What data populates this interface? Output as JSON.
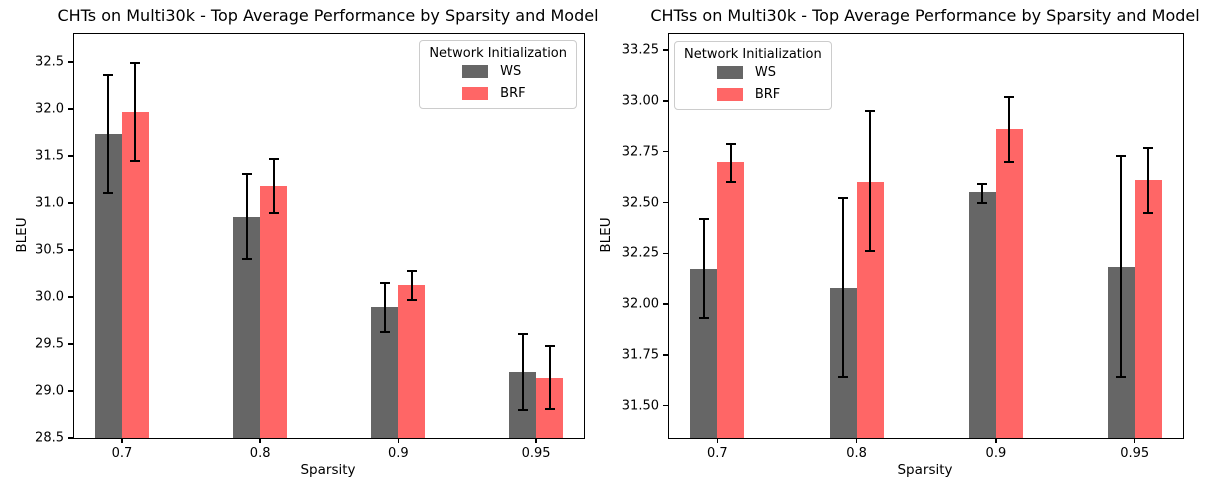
{
  "chart_data": [
    {
      "type": "bar",
      "title": "CHTs on Multi30k - Top Average Performance by Sparsity and Model",
      "xlabel": "Sparsity",
      "ylabel": "BLEU",
      "categories": [
        "0.7",
        "0.8",
        "0.9",
        "0.95"
      ],
      "ylim": [
        28.5,
        32.8
      ],
      "yticks": [
        32.5,
        32.0,
        31.5,
        31.0,
        30.5,
        30.0,
        29.5,
        29.0,
        28.5
      ],
      "ytick_labels": [
        "32.5",
        "32.0",
        "31.5",
        "31.0",
        "30.5",
        "30.0",
        "29.5",
        "29.0",
        "28.5"
      ],
      "grid": false,
      "legend": {
        "title": "Network Initialization",
        "position": "upper right"
      },
      "series": [
        {
          "name": "WS",
          "color": "#666666",
          "values": [
            31.74,
            30.85,
            29.89,
            29.2
          ],
          "err_low": [
            31.11,
            30.4,
            29.63,
            28.8
          ],
          "err_high": [
            32.36,
            31.31,
            30.15,
            29.61
          ]
        },
        {
          "name": "BRF",
          "color": "#FF6666",
          "values": [
            31.97,
            31.18,
            30.13,
            29.14
          ],
          "err_low": [
            31.45,
            30.9,
            29.97,
            28.81
          ],
          "err_high": [
            32.49,
            31.47,
            30.28,
            29.48
          ]
        }
      ]
    },
    {
      "type": "bar",
      "title": "CHTss on Multi30k - Top Average Performance by Sparsity and Model",
      "xlabel": "Sparsity",
      "ylabel": "BLEU",
      "categories": [
        "0.7",
        "0.8",
        "0.9",
        "0.95"
      ],
      "ylim": [
        31.34,
        33.33
      ],
      "yticks": [
        33.25,
        33.0,
        32.75,
        32.5,
        32.25,
        32.0,
        31.75,
        31.5
      ],
      "ytick_labels": [
        "33.25",
        "33.00",
        "32.75",
        "32.50",
        "32.25",
        "32.00",
        "31.75",
        "31.50"
      ],
      "grid": false,
      "legend": {
        "title": "Network Initialization",
        "position": "upper left"
      },
      "series": [
        {
          "name": "WS",
          "color": "#666666",
          "values": [
            32.17,
            32.08,
            32.55,
            32.18
          ],
          "err_low": [
            31.93,
            31.64,
            32.5,
            31.64
          ],
          "err_high": [
            32.42,
            32.52,
            32.59,
            32.73
          ]
        },
        {
          "name": "BRF",
          "color": "#FF6666",
          "values": [
            32.7,
            32.6,
            32.86,
            32.61
          ],
          "err_low": [
            32.6,
            32.26,
            32.7,
            32.45
          ],
          "err_high": [
            32.79,
            32.95,
            33.02,
            32.77
          ]
        }
      ]
    }
  ]
}
